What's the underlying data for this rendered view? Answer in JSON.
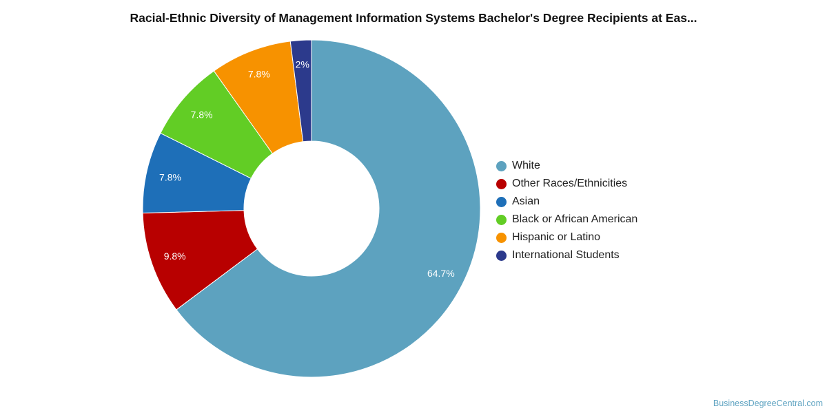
{
  "chart_data": {
    "type": "pie",
    "variant": "donut",
    "title": "Racial-Ethnic Diversity of Management Information Systems Bachelor's Degree Recipients at Eas...",
    "categories": [
      "White",
      "Other Races/Ethnicities",
      "Asian",
      "Black or African American",
      "Hispanic or Latino",
      "International Students"
    ],
    "values": [
      64.7,
      9.8,
      7.8,
      7.8,
      7.8,
      2
    ],
    "value_labels": [
      "64.7%",
      "9.8%",
      "7.8%",
      "7.8%",
      "7.8%",
      "2%"
    ],
    "colors": [
      "#5da2bf",
      "#b80000",
      "#1e6fb8",
      "#62cd25",
      "#f79200",
      "#2c3a8c"
    ],
    "legend_position": "right",
    "direction": "clockwise from top",
    "grid": false
  },
  "source": {
    "credit": "BusinessDegreeCentral.com"
  }
}
